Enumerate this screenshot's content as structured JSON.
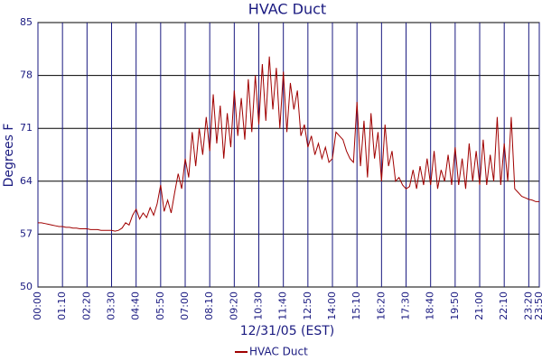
{
  "chart_data": {
    "type": "line",
    "title": "HVAC Duct",
    "ylabel": "Degrees F",
    "xlabel": "12/31/05 (EST)",
    "xlim": [
      0,
      1430
    ],
    "ylim": [
      50,
      85
    ],
    "yticks": [
      50,
      57,
      64,
      71,
      78,
      85
    ],
    "xticks": [
      {
        "value": 0,
        "label": "00:00"
      },
      {
        "value": 70,
        "label": "01:10"
      },
      {
        "value": 140,
        "label": "02:20"
      },
      {
        "value": 210,
        "label": "03:30"
      },
      {
        "value": 280,
        "label": "04:40"
      },
      {
        "value": 350,
        "label": "05:50"
      },
      {
        "value": 420,
        "label": "07:00"
      },
      {
        "value": 490,
        "label": "08:10"
      },
      {
        "value": 560,
        "label": "09:20"
      },
      {
        "value": 630,
        "label": "10:30"
      },
      {
        "value": 700,
        "label": "11:40"
      },
      {
        "value": 770,
        "label": "12:50"
      },
      {
        "value": 840,
        "label": "14:00"
      },
      {
        "value": 910,
        "label": "15:10"
      },
      {
        "value": 980,
        "label": "16:20"
      },
      {
        "value": 1050,
        "label": "17:30"
      },
      {
        "value": 1120,
        "label": "18:40"
      },
      {
        "value": 1190,
        "label": "19:50"
      },
      {
        "value": 1260,
        "label": "21:00"
      },
      {
        "value": 1330,
        "label": "22:10"
      },
      {
        "value": 1400,
        "label": "23:20"
      },
      {
        "value": 1430,
        "label": "23:50"
      }
    ],
    "grid": true,
    "legend": "bottom",
    "x": [
      0,
      10,
      20,
      30,
      40,
      50,
      60,
      70,
      80,
      90,
      100,
      110,
      120,
      130,
      140,
      150,
      160,
      170,
      180,
      190,
      200,
      210,
      220,
      230,
      240,
      250,
      260,
      270,
      280,
      290,
      300,
      310,
      320,
      330,
      340,
      350,
      360,
      370,
      380,
      390,
      400,
      410,
      420,
      430,
      440,
      450,
      460,
      470,
      480,
      490,
      500,
      510,
      520,
      530,
      540,
      550,
      560,
      570,
      580,
      590,
      600,
      610,
      620,
      630,
      640,
      650,
      660,
      670,
      680,
      690,
      700,
      710,
      720,
      730,
      740,
      750,
      760,
      770,
      780,
      790,
      800,
      810,
      820,
      830,
      840,
      850,
      860,
      870,
      880,
      890,
      900,
      910,
      920,
      930,
      940,
      950,
      960,
      970,
      980,
      990,
      1000,
      1010,
      1020,
      1030,
      1040,
      1050,
      1060,
      1070,
      1080,
      1090,
      1100,
      1110,
      1120,
      1130,
      1140,
      1150,
      1160,
      1170,
      1180,
      1190,
      1200,
      1210,
      1220,
      1230,
      1240,
      1250,
      1260,
      1270,
      1280,
      1290,
      1300,
      1310,
      1320,
      1330,
      1340,
      1350,
      1360,
      1370,
      1380,
      1390,
      1400,
      1410,
      1420,
      1430
    ],
    "series": [
      {
        "name": "HVAC Duct",
        "color": "#a00000",
        "values": [
          58.5,
          58.5,
          58.4,
          58.3,
          58.2,
          58.1,
          58.0,
          58.0,
          57.9,
          57.9,
          57.8,
          57.8,
          57.7,
          57.7,
          57.7,
          57.6,
          57.6,
          57.6,
          57.5,
          57.5,
          57.5,
          57.5,
          57.4,
          57.5,
          57.8,
          58.5,
          58.2,
          59.5,
          60.3,
          59.0,
          59.8,
          59.2,
          60.5,
          59.5,
          61.0,
          63.5,
          60.0,
          61.5,
          59.8,
          62.5,
          65.0,
          63.0,
          67.0,
          64.5,
          70.5,
          66.0,
          71.0,
          67.5,
          72.5,
          68.0,
          75.5,
          69.0,
          74.0,
          67.0,
          73.0,
          68.5,
          76.0,
          70.0,
          75.0,
          69.5,
          77.5,
          70.5,
          78.0,
          71.5,
          79.5,
          72.0,
          80.5,
          73.5,
          79.0,
          71.0,
          78.5,
          70.5,
          77.0,
          73.5,
          76.0,
          70.0,
          71.5,
          68.5,
          70.0,
          67.5,
          69.0,
          67.0,
          68.5,
          66.5,
          67.0,
          70.5,
          70.0,
          69.5,
          68.0,
          67.0,
          66.5,
          74.5,
          66.0,
          72.0,
          64.5,
          73.0,
          67.0,
          70.5,
          64.0,
          71.5,
          66.0,
          68.0,
          64.0,
          64.5,
          63.5,
          63.0,
          63.3,
          65.5,
          63.0,
          66.0,
          63.5,
          67.0,
          63.5,
          68.0,
          63.0,
          65.5,
          64.0,
          67.5,
          63.5,
          68.5,
          63.5,
          67.0,
          63.0,
          69.0,
          64.0,
          68.0,
          63.5,
          69.5,
          63.5,
          67.5,
          64.0,
          72.5,
          63.5,
          69.0,
          64.0,
          72.5,
          63.0,
          62.5,
          62.0,
          61.8,
          61.6,
          61.5,
          61.3,
          61.3
        ]
      }
    ]
  }
}
